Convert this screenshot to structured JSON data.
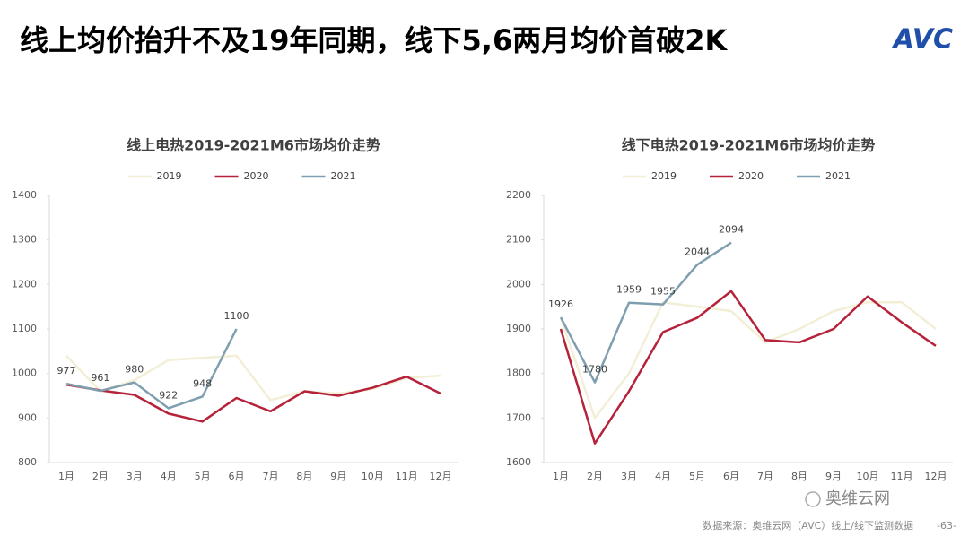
{
  "title": "线上均价抬升不及19年同期，线下5,6两月均价首破2K",
  "logo": "AVC",
  "wechat_label": "奥维云网",
  "source": "数据来源：奥维云网（AVC）线上/线下监测数据",
  "page_number": "-63-",
  "chart_data": [
    {
      "type": "line",
      "title": "线上电热2019-2021M6市场均价走势",
      "categories": [
        "1月",
        "2月",
        "3月",
        "4月",
        "5月",
        "6月",
        "7月",
        "8月",
        "9月",
        "10月",
        "11月",
        "12月"
      ],
      "ylim": [
        800,
        1400
      ],
      "yticks": [
        800,
        900,
        1000,
        1100,
        1200,
        1300,
        1400
      ],
      "grid": false,
      "legend": "top",
      "series": [
        {
          "name": "2019",
          "color": "#f3eed6",
          "values": [
            1040,
            960,
            985,
            1030,
            1035,
            1040,
            940,
            960,
            955,
            965,
            990,
            995
          ]
        },
        {
          "name": "2020",
          "color": "#b5223a",
          "values": [
            975,
            962,
            952,
            910,
            892,
            945,
            915,
            960,
            950,
            968,
            993,
            955
          ]
        },
        {
          "name": "2021",
          "color": "#7f9fb0",
          "show_labels": true,
          "values": [
            977,
            961,
            980,
            922,
            948,
            1100,
            null,
            null,
            null,
            null,
            null,
            null
          ]
        }
      ]
    },
    {
      "type": "line",
      "title": "线下电热2019-2021M6市场均价走势",
      "categories": [
        "1月",
        "2月",
        "3月",
        "4月",
        "5月",
        "6月",
        "7月",
        "8月",
        "9月",
        "10月",
        "11月",
        "12月"
      ],
      "ylim": [
        1600,
        2200
      ],
      "yticks": [
        1600,
        1700,
        1800,
        1900,
        2000,
        2100,
        2200
      ],
      "grid": false,
      "legend": "top",
      "series": [
        {
          "name": "2019",
          "color": "#f3eed6",
          "values": [
            1925,
            1700,
            1800,
            1960,
            1950,
            1940,
            1870,
            1900,
            1940,
            1960,
            1960,
            1900
          ]
        },
        {
          "name": "2020",
          "color": "#b5223a",
          "values": [
            1900,
            1643,
            1760,
            1893,
            1925,
            1985,
            1875,
            1870,
            1900,
            1973,
            1915,
            1862
          ]
        },
        {
          "name": "2021",
          "color": "#7f9fb0",
          "show_labels": true,
          "values": [
            1926,
            1780,
            1959,
            1955,
            2044,
            2094,
            null,
            null,
            null,
            null,
            null,
            null
          ]
        }
      ]
    }
  ]
}
